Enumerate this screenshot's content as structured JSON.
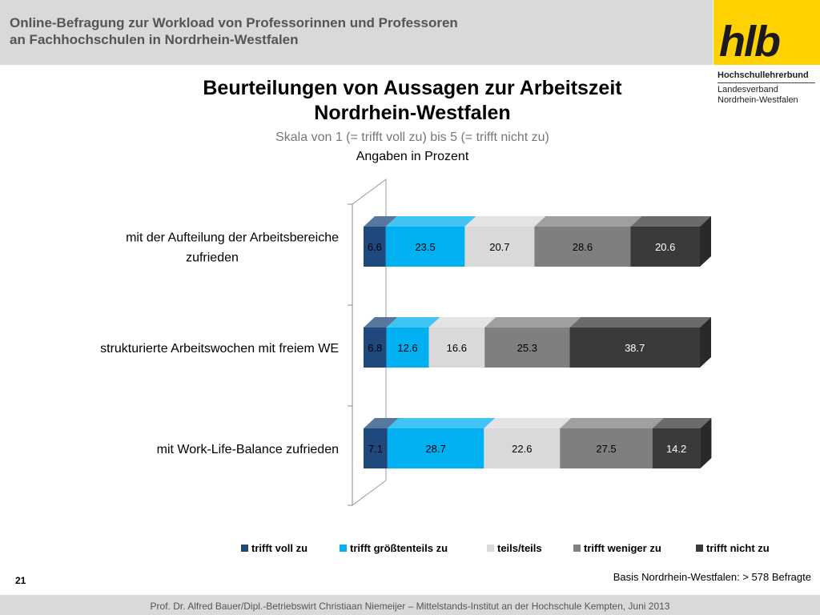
{
  "header": {
    "title_line1": "Online-Befragung  zur  Workload von Professorinnen und Professoren",
    "title_line2": "an Fachhochschulen in Nordrhein-Westfalen"
  },
  "logo": {
    "text": "hlb",
    "org_name": "Hochschullehrerbund",
    "org_sub1": "Landesverband",
    "org_sub2": "Nordrhein-Westfalen"
  },
  "chart_data": {
    "type": "bar",
    "orientation": "horizontal",
    "stacked": true,
    "title": "Beurteilungen von Aussagen zur Arbeitszeit Nordrhein-Westfalen",
    "title_lines": [
      "Beurteilungen von Aussagen zur Arbeitszeit",
      "Nordrhein-Westfalen"
    ],
    "subtitle": "Skala von 1 (= trifft voll zu) bis 5 (= trifft nicht zu)",
    "note": "Angaben in Prozent",
    "categories": [
      "mit der Aufteilung der Arbeitsbereiche zufrieden",
      "strukturierte Arbeitswochen mit freiem WE",
      "mit Work-Life-Balance zufrieden"
    ],
    "category_label_lines": [
      [
        "mit der Aufteilung der Arbeitsbereiche",
        "zufrieden"
      ],
      [
        "strukturierte Arbeitswochen mit freiem WE"
      ],
      [
        "mit Work-Life-Balance zufrieden"
      ]
    ],
    "series": [
      {
        "name": "trifft voll zu",
        "values": [
          6.6,
          6.8,
          7.1
        ],
        "value_labels": [
          "6.6",
          "6.8",
          "7.1"
        ],
        "color": "#1f497d",
        "label_color": "#000000"
      },
      {
        "name": "trifft größtenteils zu",
        "values": [
          23.5,
          12.6,
          28.7
        ],
        "value_labels": [
          "23.5",
          "12.6",
          "28.7"
        ],
        "color": "#00b0f0",
        "label_color": "#000000"
      },
      {
        "name": "teils/teils",
        "values": [
          20.7,
          16.6,
          22.6
        ],
        "value_labels": [
          "20.7",
          "16.6",
          "22.6"
        ],
        "color": "#d9d9d9",
        "label_color": "#000000"
      },
      {
        "name": "trifft weniger zu",
        "values": [
          28.6,
          25.3,
          27.5
        ],
        "value_labels": [
          "28.6",
          "25.3",
          "27.5"
        ],
        "color": "#7f7f7f",
        "label_color": "#000000"
      },
      {
        "name": "trifft nicht zu",
        "values": [
          20.6,
          38.7,
          14.2
        ],
        "value_labels": [
          "20.6",
          "38.7",
          "14.2"
        ],
        "color": "#3a3a3a",
        "label_color": "#ffffff"
      }
    ],
    "xlim": [
      0,
      100
    ],
    "grid": false,
    "legend_position": "bottom",
    "three_d": true
  },
  "page_number": "21",
  "basis_note": "Basis Nordrhein-Westfalen: > 578 Befragte",
  "footer": "Prof. Dr. Alfred Bauer/Dipl.-Betriebswirt Christiaan Niemeijer – Mittelstands-Institut an der Hochschule Kempten, Juni 2013"
}
